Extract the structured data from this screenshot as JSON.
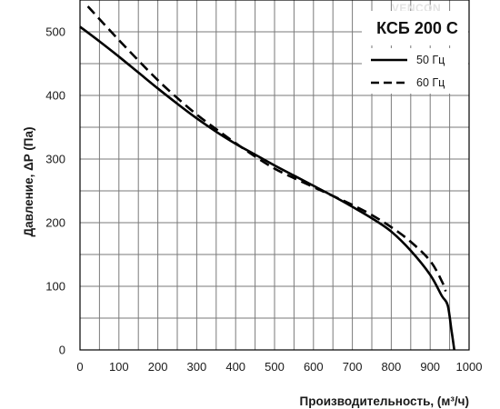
{
  "chart_data": {
    "type": "line",
    "title": "КСБ 200 С",
    "xlabel": "Производительность, (м³/ч)",
    "ylabel": "Давление, ΔP (Па)",
    "xlim": [
      0,
      1000
    ],
    "ylim": [
      0,
      550
    ],
    "x_ticks": [
      "0",
      "100",
      "200",
      "300",
      "400",
      "500",
      "600",
      "700",
      "800",
      "900",
      "1000"
    ],
    "y_ticks": [
      "0",
      "100",
      "200",
      "300",
      "400",
      "500"
    ],
    "grid": true,
    "legend_position": "top-right",
    "watermark": "VENCON",
    "series": [
      {
        "name": "50 Гц",
        "style": "solid",
        "color": "#000000",
        "points": [
          [
            0,
            508
          ],
          [
            50,
            485
          ],
          [
            100,
            461
          ],
          [
            150,
            436
          ],
          [
            200,
            411
          ],
          [
            250,
            387
          ],
          [
            300,
            364
          ],
          [
            350,
            343
          ],
          [
            400,
            324
          ],
          [
            450,
            307
          ],
          [
            500,
            290
          ],
          [
            550,
            274
          ],
          [
            600,
            258
          ],
          [
            650,
            242
          ],
          [
            700,
            225
          ],
          [
            750,
            207
          ],
          [
            800,
            186
          ],
          [
            850,
            156
          ],
          [
            900,
            118
          ],
          [
            930,
            85
          ],
          [
            945,
            70
          ],
          [
            955,
            30
          ],
          [
            962,
            0
          ]
        ]
      },
      {
        "name": "60 Гц",
        "style": "dashed",
        "color": "#000000",
        "points": [
          [
            20,
            540
          ],
          [
            50,
            520
          ],
          [
            100,
            487
          ],
          [
            150,
            455
          ],
          [
            200,
            424
          ],
          [
            250,
            396
          ],
          [
            300,
            370
          ],
          [
            350,
            347
          ],
          [
            400,
            325
          ],
          [
            450,
            304
          ],
          [
            500,
            285
          ],
          [
            550,
            270
          ],
          [
            600,
            256
          ],
          [
            650,
            242
          ],
          [
            700,
            228
          ],
          [
            750,
            212
          ],
          [
            800,
            193
          ],
          [
            850,
            170
          ],
          [
            900,
            140
          ],
          [
            930,
            108
          ],
          [
            940,
            92
          ]
        ]
      }
    ]
  }
}
